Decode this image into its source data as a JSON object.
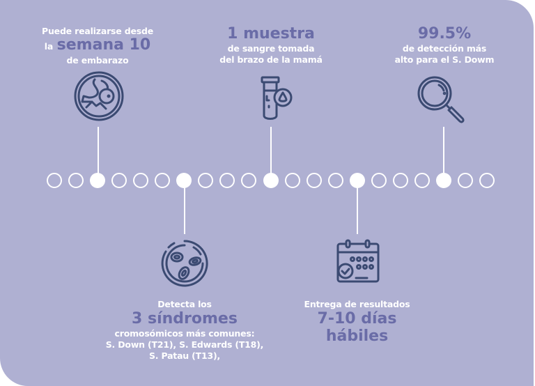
{
  "colors": {
    "background": "#afb0d2",
    "accent": "#6a6ca7",
    "icon": "#3b4a72",
    "text": "#ffffff"
  },
  "timeline": {
    "total_dots": 21,
    "filled_indices": [
      2,
      6,
      10,
      14,
      18
    ]
  },
  "milestones": {
    "week": {
      "line1": "Puede realizarse desde",
      "prefix": "la",
      "highlight": "semana 10",
      "line3": "de embarazo",
      "icon": "fetus-icon"
    },
    "syndromes": {
      "line1": "Detecta los",
      "highlight": "3 síndromes",
      "line3": "cromosómicos más comunes:",
      "line4": "S. Down (T21), S. Edwards (T18),",
      "line5": "S. Patau (T13),",
      "icon": "cells-icon"
    },
    "sample": {
      "highlight": "1 muestra",
      "line2": "de sangre tomada",
      "line3": "del brazo de la mamá",
      "icon": "blood-test-tube-icon"
    },
    "results": {
      "line1": "Entrega de resultados",
      "highlight1": "7-10 días",
      "highlight2": "hábiles",
      "icon": "calendar-check-icon"
    },
    "detection": {
      "highlight": "99.5%",
      "line2": "de detección más",
      "line3": "alto para el S. Dowm",
      "icon": "magnifier-icon"
    }
  }
}
